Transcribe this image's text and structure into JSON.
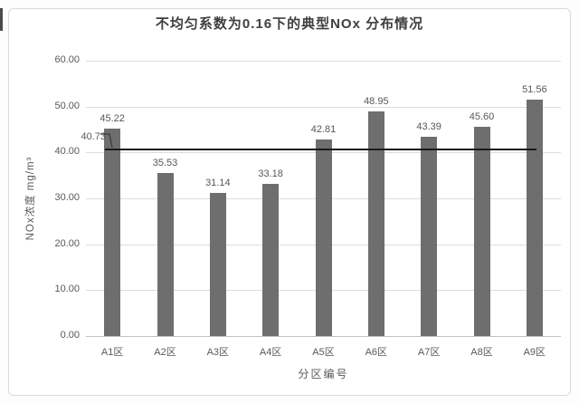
{
  "chart_data": {
    "type": "bar",
    "title": "不均匀系数为0.16下的典型NOx 分布情况",
    "xlabel": "分区编号",
    "ylabel": "NOx浓度 mg/m³",
    "categories": [
      "A1区",
      "A2区",
      "A3区",
      "A4区",
      "A5区",
      "A6区",
      "A7区",
      "A8区",
      "A9区"
    ],
    "values": [
      45.22,
      35.53,
      31.14,
      33.18,
      42.81,
      48.95,
      43.39,
      45.6,
      51.56
    ],
    "data_labels": [
      "45.22",
      "35.53",
      "31.14",
      "33.18",
      "42.81",
      "48.95",
      "43.39",
      "45.60",
      "51.56"
    ],
    "ylim": [
      0,
      60
    ],
    "ytick_step": 10,
    "ytick_labels": [
      "0.00",
      "10.00",
      "20.00",
      "30.00",
      "40.00",
      "50.00",
      "60.00"
    ],
    "grid": true,
    "legend": false,
    "reference_line": {
      "value": 40.73,
      "label": "40.73"
    },
    "bar_color": "#6e6e6e",
    "reference_line_color": "#1a1a1a"
  },
  "colors": {
    "title": "#3f3f3f",
    "tick_label": "#595959",
    "gridline": "#dcdcdc",
    "axis_line": "#c3c3c3",
    "frame_border": "#d9d9d9",
    "background": "#ffffff",
    "annotation_leader": "#3a3a3a"
  }
}
